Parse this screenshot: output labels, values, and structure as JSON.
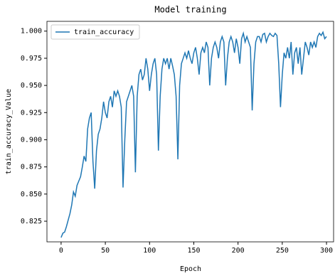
{
  "chart_data": {
    "type": "line",
    "title": "Model training",
    "xlabel": "Epoch",
    "ylabel": "train_accuracy_Value",
    "x": [
      0,
      2,
      4,
      6,
      8,
      10,
      12,
      14,
      16,
      18,
      20,
      22,
      24,
      26,
      28,
      30,
      32,
      34,
      36,
      38,
      40,
      42,
      44,
      46,
      48,
      50,
      52,
      54,
      56,
      58,
      60,
      62,
      64,
      66,
      68,
      70,
      72,
      74,
      76,
      78,
      80,
      82,
      84,
      86,
      88,
      90,
      92,
      94,
      96,
      98,
      100,
      102,
      104,
      106,
      108,
      110,
      112,
      114,
      116,
      118,
      120,
      122,
      124,
      126,
      128,
      130,
      132,
      134,
      136,
      138,
      140,
      142,
      144,
      146,
      148,
      150,
      152,
      154,
      156,
      158,
      160,
      162,
      164,
      166,
      168,
      170,
      172,
      174,
      176,
      178,
      180,
      182,
      184,
      186,
      188,
      190,
      192,
      194,
      196,
      198,
      200,
      202,
      204,
      206,
      208,
      210,
      212,
      214,
      216,
      218,
      220,
      222,
      224,
      226,
      228,
      230,
      232,
      234,
      236,
      238,
      240,
      242,
      244,
      246,
      248,
      250,
      252,
      254,
      256,
      258,
      260,
      262,
      264,
      266,
      268,
      270,
      272,
      274,
      276,
      278,
      280,
      282,
      284,
      286,
      288,
      290,
      292,
      294,
      296,
      298,
      300
    ],
    "series": [
      {
        "name": "train_accuracy",
        "color": "#1f77b4",
        "values": [
          0.81,
          0.814,
          0.815,
          0.82,
          0.826,
          0.832,
          0.84,
          0.852,
          0.848,
          0.858,
          0.862,
          0.866,
          0.875,
          0.885,
          0.88,
          0.91,
          0.92,
          0.925,
          0.88,
          0.855,
          0.89,
          0.905,
          0.91,
          0.92,
          0.935,
          0.925,
          0.92,
          0.935,
          0.94,
          0.93,
          0.945,
          0.94,
          0.945,
          0.94,
          0.93,
          0.856,
          0.9,
          0.935,
          0.94,
          0.945,
          0.95,
          0.94,
          0.87,
          0.94,
          0.96,
          0.965,
          0.955,
          0.96,
          0.975,
          0.965,
          0.945,
          0.96,
          0.97,
          0.975,
          0.96,
          0.89,
          0.94,
          0.965,
          0.975,
          0.97,
          0.975,
          0.965,
          0.975,
          0.968,
          0.96,
          0.94,
          0.882,
          0.95,
          0.97,
          0.975,
          0.98,
          0.975,
          0.982,
          0.975,
          0.97,
          0.98,
          0.985,
          0.975,
          0.96,
          0.98,
          0.985,
          0.98,
          0.99,
          0.985,
          0.95,
          0.975,
          0.985,
          0.99,
          0.985,
          0.975,
          0.99,
          0.995,
          0.99,
          0.95,
          0.975,
          0.99,
          0.995,
          0.99,
          0.98,
          0.993,
          0.985,
          0.97,
          0.993,
          0.998,
          0.99,
          0.995,
          0.99,
          0.985,
          0.927,
          0.97,
          0.99,
          0.995,
          0.995,
          0.99,
          0.997,
          0.998,
          0.99,
          0.995,
          0.998,
          0.996,
          0.995,
          0.998,
          0.996,
          0.97,
          0.93,
          0.96,
          0.98,
          0.975,
          0.985,
          0.975,
          0.99,
          0.96,
          0.98,
          0.985,
          0.97,
          0.985,
          0.96,
          0.975,
          0.99,
          0.985,
          0.978,
          0.99,
          0.985,
          0.99,
          0.985,
          0.995,
          0.998,
          0.996,
          0.999,
          0.993,
          0.995
        ]
      }
    ],
    "xlim": [
      -16,
      308
    ],
    "ylim": [
      0.806,
      1.009
    ],
    "xticks": [
      0,
      50,
      100,
      150,
      200,
      250,
      300
    ],
    "yticks": [
      0.825,
      {
        "value": 0.85,
        "label": "0.850"
      },
      0.875,
      {
        "value": 0.9,
        "label": "0.900"
      },
      0.925,
      {
        "value": 0.95,
        "label": "0.950"
      },
      0.975,
      {
        "value": 1,
        "label": "1.000"
      }
    ],
    "legend": "upper left"
  }
}
